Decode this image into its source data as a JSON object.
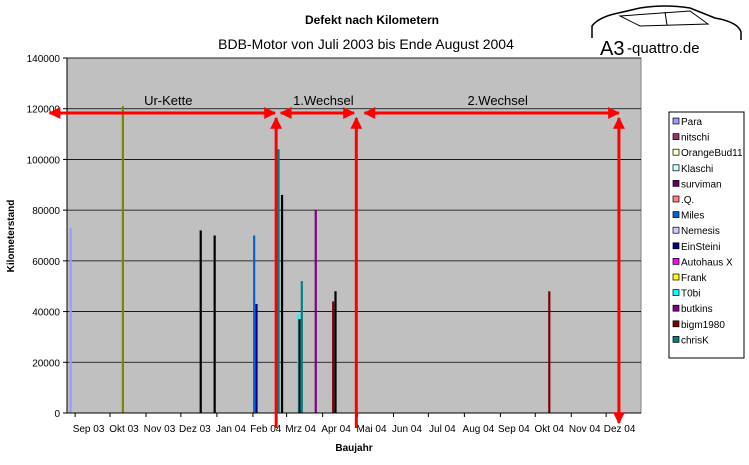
{
  "logo": {
    "text_a3": "A3",
    "text_quattro": "-quattro.de"
  },
  "chart_data": {
    "type": "bar",
    "title": "Defekt nach Kilometern",
    "subtitle": "BDB-Motor von Juli 2003 bis Ende August 2004",
    "xlabel": "Baujahr",
    "ylabel": "Kilometerstand",
    "ylim": [
      0,
      140000
    ],
    "yticks": [
      0,
      20000,
      40000,
      60000,
      80000,
      100000,
      120000,
      140000
    ],
    "ytick_labels": [
      "0",
      "20000",
      "40000",
      "60000",
      "80000",
      "100000",
      "120000",
      "140000"
    ],
    "categories": [
      "Sep 03",
      "Okt 03",
      "Nov 03",
      "Dez 03",
      "Jan 04",
      "Feb 04",
      "Mrz 04",
      "Apr 04",
      "Mai 04",
      "Jun 04",
      "Jul 04",
      "Aug 04",
      "Sep 04",
      "Okt 04",
      "Nov 04",
      "Dez 04"
    ],
    "grid": true,
    "legend_position": "right",
    "plot_background": "#c0c0c0",
    "series": [
      {
        "name": "Para",
        "color": "#9999ff"
      },
      {
        "name": "nitschi",
        "color": "#993366"
      },
      {
        "name": "OrangeBud11",
        "color": "#ffffcc"
      },
      {
        "name": "Klaschi",
        "color": "#ccffff"
      },
      {
        "name": "surviman",
        "color": "#660066"
      },
      {
        "name": ".Q.",
        "color": "#ff8080"
      },
      {
        "name": "Miles",
        "color": "#0066cc"
      },
      {
        "name": "Nemesis",
        "color": "#ccccff"
      },
      {
        "name": "EinSteini",
        "color": "#000080"
      },
      {
        "name": "Autohaus X",
        "color": "#ff00ff"
      },
      {
        "name": "Frank",
        "color": "#ffff00"
      },
      {
        "name": "T0bi",
        "color": "#00ffff"
      },
      {
        "name": "butkins",
        "color": "#800080"
      },
      {
        "name": "bigm1980",
        "color": "#800000"
      },
      {
        "name": "chrisK",
        "color": "#008080"
      }
    ],
    "bars": [
      {
        "date": "2003-08-28",
        "value": 73000,
        "color": "#9999ff"
      },
      {
        "date": "2003-10-12",
        "value": 121000,
        "color": "#808000"
      },
      {
        "date": "2003-12-18",
        "value": 72000,
        "color": "#000000"
      },
      {
        "date": "2003-12-30",
        "value": 70000,
        "color": "#000000"
      },
      {
        "date": "2004-02-02",
        "value": 70000,
        "color": "#0066cc"
      },
      {
        "date": "2004-02-04",
        "value": 43000,
        "color": "#000080"
      },
      {
        "date": "2004-02-23",
        "value": 104000,
        "color": "#008080"
      },
      {
        "date": "2004-02-26",
        "value": 86000,
        "color": "#000000"
      },
      {
        "date": "2004-03-11",
        "value": 39000,
        "color": "#00ffff"
      },
      {
        "date": "2004-03-12",
        "value": 37000,
        "color": "#000000"
      },
      {
        "date": "2004-03-14",
        "value": 52000,
        "color": "#008080"
      },
      {
        "date": "2004-03-26",
        "value": 80000,
        "color": "#800080"
      },
      {
        "date": "2004-04-10",
        "value": 44000,
        "color": "#800000"
      },
      {
        "date": "2004-04-12",
        "value": 48000,
        "color": "#000000"
      },
      {
        "date": "2004-10-13",
        "value": 48000,
        "color": "#800000"
      }
    ],
    "annotations": [
      {
        "label": "Ur-Kette",
        "from": "2003-08-10",
        "to": "2004-02-20"
      },
      {
        "label": "1.Wechsel",
        "from": "2004-02-25",
        "to": "2004-04-28"
      },
      {
        "label": "2.Wechsel",
        "from": "2004-05-07",
        "to": "2004-12-12"
      }
    ],
    "vertical_markers": [
      "2004-02-21",
      "2004-04-30",
      "2004-12-12"
    ],
    "annotation_color": "#ff0000"
  }
}
